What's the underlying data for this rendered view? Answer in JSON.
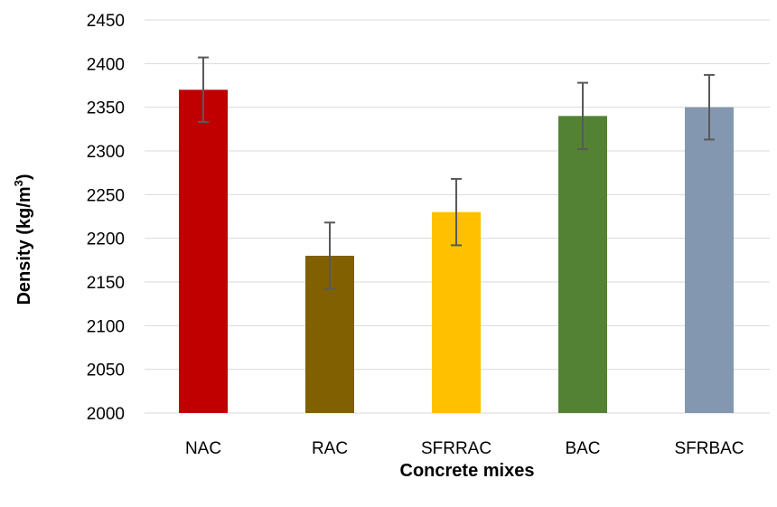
{
  "chart_data": {
    "type": "bar",
    "title": "",
    "xlabel": "Concrete mixes",
    "ylabel_main": "Density (kg/m",
    "ylabel_sup": "3",
    "ylabel_close": ")",
    "categories": [
      "NAC",
      "RAC",
      "SFRRAC",
      "BAC",
      "SFRBAC"
    ],
    "values": [
      2370,
      2180,
      2230,
      2340,
      2350
    ],
    "error_plus_minus": [
      37,
      38,
      38,
      38,
      37
    ],
    "colors": [
      "#c00000",
      "#806000",
      "#ffc000",
      "#548235",
      "#8497b0"
    ],
    "ylim": [
      2000,
      2450
    ],
    "yticks": [
      "2000",
      "2050",
      "2100",
      "2150",
      "2200",
      "2250",
      "2300",
      "2350",
      "2400",
      "2450"
    ],
    "grid": true,
    "legend": "none"
  }
}
